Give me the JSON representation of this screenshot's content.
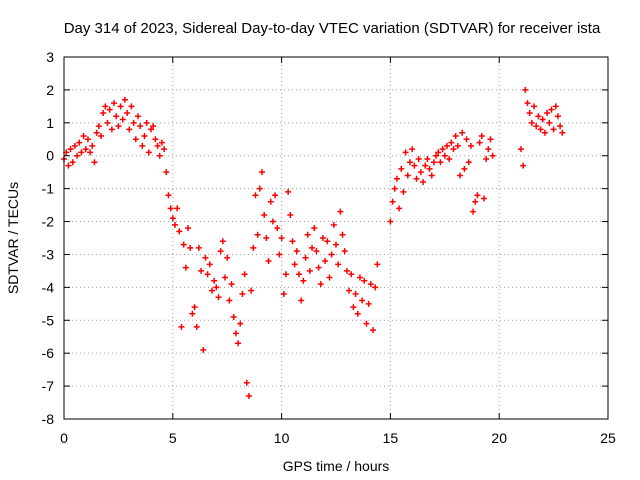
{
  "chart_data": {
    "type": "scatter",
    "title": "Day 314 of 2023, Sidereal Day-to-day VTEC variation (SDTVAR) for receiver ista",
    "xlabel": "GPS time / hours",
    "ylabel": "SDTVAR / TECUs",
    "xlim": [
      0,
      25
    ],
    "ylim": [
      -8,
      3
    ],
    "xticks": [
      0,
      5,
      10,
      15,
      20,
      25
    ],
    "yticks": [
      -8,
      -7,
      -6,
      -5,
      -4,
      -3,
      -2,
      -1,
      0,
      1,
      2,
      3
    ],
    "grid": true,
    "marker": "+",
    "marker_color": "#ff0000",
    "series": [
      {
        "points": [
          [
            0.0,
            -0.1
          ],
          [
            0.1,
            0.1
          ],
          [
            0.2,
            -0.3
          ],
          [
            0.3,
            0.2
          ],
          [
            0.4,
            -0.2
          ],
          [
            0.5,
            0.3
          ],
          [
            0.6,
            0.0
          ],
          [
            0.7,
            0.4
          ],
          [
            0.8,
            0.1
          ],
          [
            0.9,
            0.6
          ],
          [
            1.0,
            0.2
          ],
          [
            1.1,
            0.5
          ],
          [
            1.2,
            0.1
          ],
          [
            1.3,
            0.3
          ],
          [
            1.4,
            -0.2
          ],
          [
            1.5,
            0.7
          ],
          [
            1.6,
            0.9
          ],
          [
            1.7,
            0.6
          ],
          [
            1.8,
            1.3
          ],
          [
            1.9,
            1.5
          ],
          [
            2.0,
            1.0
          ],
          [
            2.1,
            1.4
          ],
          [
            2.2,
            0.8
          ],
          [
            2.3,
            1.6
          ],
          [
            2.4,
            1.2
          ],
          [
            2.5,
            0.9
          ],
          [
            2.6,
            1.5
          ],
          [
            2.7,
            1.1
          ],
          [
            2.8,
            1.7
          ],
          [
            2.9,
            1.3
          ],
          [
            3.0,
            0.8
          ],
          [
            3.1,
            1.5
          ],
          [
            3.2,
            1.0
          ],
          [
            3.3,
            0.5
          ],
          [
            3.4,
            1.2
          ],
          [
            3.5,
            0.9
          ],
          [
            3.6,
            0.3
          ],
          [
            3.7,
            0.6
          ],
          [
            3.8,
            1.0
          ],
          [
            3.9,
            0.1
          ],
          [
            4.0,
            0.8
          ],
          [
            4.1,
            0.9
          ],
          [
            4.2,
            0.5
          ],
          [
            4.3,
            0.3
          ],
          [
            4.4,
            0.0
          ],
          [
            4.5,
            0.4
          ],
          [
            4.6,
            0.2
          ],
          [
            4.7,
            -0.5
          ],
          [
            4.8,
            -1.2
          ],
          [
            4.9,
            -1.6
          ],
          [
            5.0,
            -1.9
          ],
          [
            5.1,
            -2.1
          ],
          [
            5.2,
            -1.6
          ],
          [
            5.3,
            -2.3
          ],
          [
            5.4,
            -5.2
          ],
          [
            5.5,
            -2.7
          ],
          [
            5.6,
            -3.4
          ],
          [
            5.7,
            -2.2
          ],
          [
            5.8,
            -2.8
          ],
          [
            5.9,
            -4.8
          ],
          [
            6.0,
            -4.6
          ],
          [
            6.1,
            -5.2
          ],
          [
            6.2,
            -2.8
          ],
          [
            6.3,
            -3.5
          ],
          [
            6.4,
            -5.9
          ],
          [
            6.5,
            -3.1
          ],
          [
            6.6,
            -3.6
          ],
          [
            6.7,
            -3.3
          ],
          [
            6.8,
            -4.1
          ],
          [
            6.9,
            -3.8
          ],
          [
            7.0,
            -4.0
          ],
          [
            7.1,
            -4.3
          ],
          [
            7.2,
            -2.9
          ],
          [
            7.3,
            -2.6
          ],
          [
            7.4,
            -3.7
          ],
          [
            7.5,
            -3.1
          ],
          [
            7.6,
            -4.4
          ],
          [
            7.7,
            -3.9
          ],
          [
            7.8,
            -4.9
          ],
          [
            7.9,
            -5.4
          ],
          [
            8.0,
            -5.7
          ],
          [
            8.1,
            -5.1
          ],
          [
            8.2,
            -4.2
          ],
          [
            8.3,
            -3.6
          ],
          [
            8.4,
            -6.9
          ],
          [
            8.5,
            -7.3
          ],
          [
            8.6,
            -4.1
          ],
          [
            8.7,
            -2.8
          ],
          [
            8.8,
            -1.2
          ],
          [
            8.9,
            -2.4
          ],
          [
            9.0,
            -1.0
          ],
          [
            9.1,
            -0.5
          ],
          [
            9.2,
            -1.8
          ],
          [
            9.3,
            -2.5
          ],
          [
            9.4,
            -3.2
          ],
          [
            9.5,
            -1.4
          ],
          [
            9.6,
            -2.0
          ],
          [
            9.7,
            -1.2
          ],
          [
            9.8,
            -2.2
          ],
          [
            9.9,
            -3.0
          ],
          [
            10.0,
            -2.5
          ],
          [
            10.1,
            -4.2
          ],
          [
            10.2,
            -3.6
          ],
          [
            10.3,
            -1.1
          ],
          [
            10.4,
            -1.8
          ],
          [
            10.5,
            -2.6
          ],
          [
            10.6,
            -3.3
          ],
          [
            10.7,
            -2.9
          ],
          [
            10.8,
            -3.6
          ],
          [
            10.9,
            -4.4
          ],
          [
            11.0,
            -3.8
          ],
          [
            11.1,
            -3.1
          ],
          [
            11.2,
            -2.4
          ],
          [
            11.3,
            -3.5
          ],
          [
            11.4,
            -2.8
          ],
          [
            11.5,
            -2.2
          ],
          [
            11.6,
            -2.9
          ],
          [
            11.7,
            -3.4
          ],
          [
            11.8,
            -3.9
          ],
          [
            11.9,
            -2.5
          ],
          [
            12.0,
            -3.2
          ],
          [
            12.1,
            -2.6
          ],
          [
            12.2,
            -3.7
          ],
          [
            12.3,
            -3.0
          ],
          [
            12.4,
            -2.1
          ],
          [
            12.5,
            -2.7
          ],
          [
            12.6,
            -3.3
          ],
          [
            12.7,
            -1.7
          ],
          [
            12.8,
            -2.4
          ],
          [
            12.9,
            -2.9
          ],
          [
            13.0,
            -3.5
          ],
          [
            13.1,
            -4.1
          ],
          [
            13.2,
            -3.6
          ],
          [
            13.3,
            -4.6
          ],
          [
            13.4,
            -4.2
          ],
          [
            13.5,
            -4.8
          ],
          [
            13.6,
            -3.7
          ],
          [
            13.7,
            -4.4
          ],
          [
            13.8,
            -3.8
          ],
          [
            13.9,
            -5.1
          ],
          [
            14.0,
            -4.5
          ],
          [
            14.1,
            -3.9
          ],
          [
            14.2,
            -5.3
          ],
          [
            14.3,
            -4.0
          ],
          [
            14.4,
            -3.3
          ],
          [
            15.0,
            -2.0
          ],
          [
            15.1,
            -1.4
          ],
          [
            15.2,
            -1.0
          ],
          [
            15.3,
            -0.7
          ],
          [
            15.4,
            -1.6
          ],
          [
            15.5,
            -0.4
          ],
          [
            15.6,
            -1.1
          ],
          [
            15.7,
            0.1
          ],
          [
            15.8,
            -0.6
          ],
          [
            15.9,
            -0.2
          ],
          [
            16.0,
            0.2
          ],
          [
            16.1,
            -0.3
          ],
          [
            16.2,
            -0.7
          ],
          [
            16.3,
            -0.1
          ],
          [
            16.4,
            -0.5
          ],
          [
            16.5,
            -0.8
          ],
          [
            16.6,
            -0.3
          ],
          [
            16.7,
            -0.1
          ],
          [
            16.8,
            -0.4
          ],
          [
            16.9,
            -0.6
          ],
          [
            17.0,
            -0.2
          ],
          [
            17.1,
            0.0
          ],
          [
            17.2,
            0.1
          ],
          [
            17.3,
            -0.2
          ],
          [
            17.4,
            0.2
          ],
          [
            17.5,
            0.0
          ],
          [
            17.6,
            0.3
          ],
          [
            17.7,
            -0.1
          ],
          [
            17.8,
            0.4
          ],
          [
            17.9,
            0.2
          ],
          [
            18.0,
            0.6
          ],
          [
            18.1,
            0.3
          ],
          [
            18.2,
            -0.6
          ],
          [
            18.3,
            0.7
          ],
          [
            18.4,
            -0.4
          ],
          [
            18.5,
            0.5
          ],
          [
            18.6,
            -0.2
          ],
          [
            18.7,
            0.3
          ],
          [
            18.8,
            -1.7
          ],
          [
            18.9,
            -1.4
          ],
          [
            19.0,
            -1.2
          ],
          [
            19.1,
            0.4
          ],
          [
            19.2,
            0.6
          ],
          [
            19.3,
            -1.3
          ],
          [
            19.4,
            -0.1
          ],
          [
            19.5,
            0.2
          ],
          [
            19.6,
            0.5
          ],
          [
            19.7,
            0.0
          ],
          [
            21.1,
            -0.3
          ],
          [
            21.2,
            2.0
          ],
          [
            21.3,
            1.6
          ],
          [
            21.4,
            1.3
          ],
          [
            21.5,
            1.0
          ],
          [
            21.6,
            1.5
          ],
          [
            21.7,
            0.9
          ],
          [
            21.8,
            1.2
          ],
          [
            21.9,
            0.8
          ],
          [
            22.0,
            1.1
          ],
          [
            22.1,
            0.7
          ],
          [
            22.2,
            1.3
          ],
          [
            22.3,
            1.0
          ],
          [
            22.4,
            1.4
          ],
          [
            22.5,
            0.8
          ],
          [
            22.6,
            1.5
          ],
          [
            22.7,
            1.2
          ],
          [
            22.8,
            0.9
          ],
          [
            22.9,
            0.7
          ],
          [
            21.0,
            0.2
          ]
        ]
      }
    ]
  }
}
